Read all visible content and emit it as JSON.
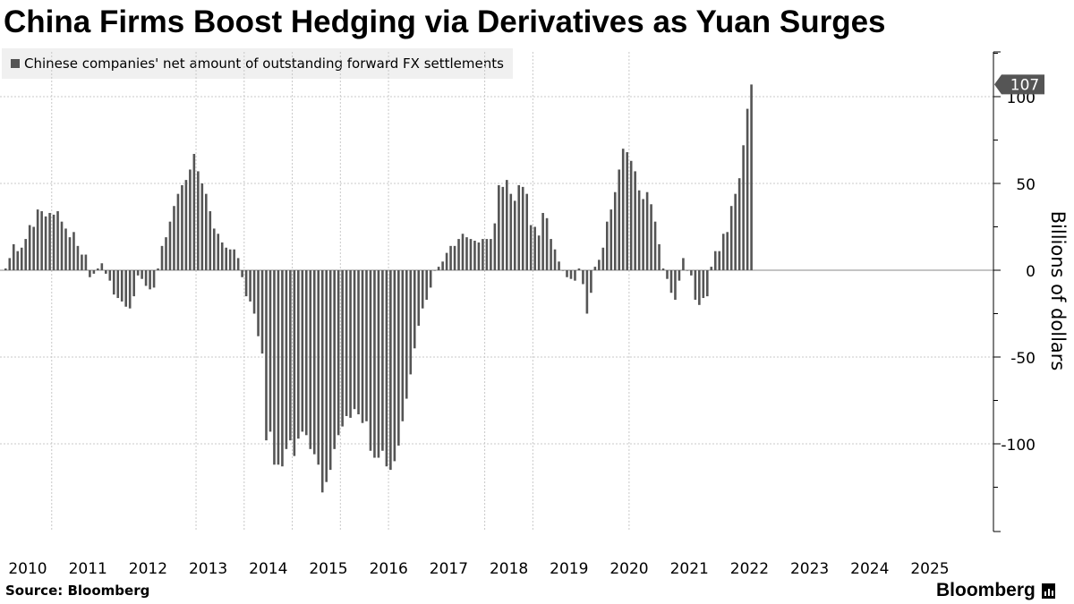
{
  "title": "China Firms Boost Hedging via Derivatives as Yuan Surges",
  "legend": {
    "label": "Chinese companies' net amount of outstanding forward FX settlements",
    "color": "#555555"
  },
  "footer": {
    "source": "Source: Bloomberg",
    "brand": "Bloomberg"
  },
  "chart_data": {
    "type": "bar",
    "title": "China Firms Boost Hedging via Derivatives as Yuan Surges",
    "xlabel": "",
    "ylabel": "Billions of dollars",
    "y_ticks": [
      100,
      50,
      0,
      -50,
      -100
    ],
    "y_tick_labels": [
      "100",
      "50",
      "0",
      "-50",
      "-100"
    ],
    "ylim": [
      -150,
      127
    ],
    "x_start": "2010-01",
    "frequency": "monthly",
    "x_ticks": [
      "2010",
      "2011",
      "2012",
      "2013",
      "2014",
      "2015",
      "2016",
      "2017",
      "2018",
      "2019",
      "2020",
      "2021",
      "2022",
      "2023",
      "2024",
      "2025"
    ],
    "grid": true,
    "legend_position": "top-left",
    "last_value_label": "107",
    "series": [
      {
        "name": "Chinese companies' net amount of outstanding forward FX settlements",
        "color": "#555555",
        "values": [
          1,
          7,
          15,
          11,
          13,
          18,
          26,
          25,
          35,
          34,
          31,
          33,
          32,
          34,
          28,
          24,
          19,
          22,
          14,
          9,
          9,
          -4,
          -2,
          1,
          4,
          -2,
          -6,
          -14,
          -16,
          -18,
          -21,
          -22,
          -15,
          -3,
          -5,
          -9,
          -11,
          -10,
          1,
          14,
          19,
          28,
          37,
          44,
          49,
          52,
          58,
          67,
          57,
          50,
          44,
          34,
          24,
          21,
          16,
          13,
          12,
          12,
          7,
          -4,
          -15,
          -18,
          -25,
          -38,
          -48,
          -98,
          -93,
          -112,
          -112,
          -113,
          -103,
          -98,
          -107,
          -97,
          -93,
          -95,
          -103,
          -106,
          -112,
          -128,
          -122,
          -115,
          -103,
          -95,
          -90,
          -84,
          -85,
          -80,
          -83,
          -88,
          -87,
          -104,
          -108,
          -108,
          -104,
          -113,
          -115,
          -110,
          -101,
          -87,
          -74,
          -60,
          -45,
          -32,
          -22,
          -17,
          -10,
          0,
          2,
          5,
          10,
          14,
          14,
          18,
          21,
          19,
          18,
          17,
          16,
          18,
          18,
          18,
          27,
          49,
          48,
          52,
          44,
          40,
          49,
          48,
          44,
          26,
          25,
          20,
          33,
          30,
          18,
          12,
          5,
          0,
          -4,
          -5,
          -6,
          1,
          -8,
          -25,
          -13,
          2,
          6,
          13,
          28,
          35,
          45,
          58,
          70,
          68,
          63,
          57,
          46,
          41,
          45,
          38,
          28,
          15,
          1,
          -5,
          -13,
          -17,
          -6,
          7,
          0,
          -3,
          -17,
          -20,
          -16,
          -15,
          2,
          11,
          11,
          21,
          22,
          37,
          44,
          53,
          72,
          93,
          107
        ]
      }
    ]
  }
}
